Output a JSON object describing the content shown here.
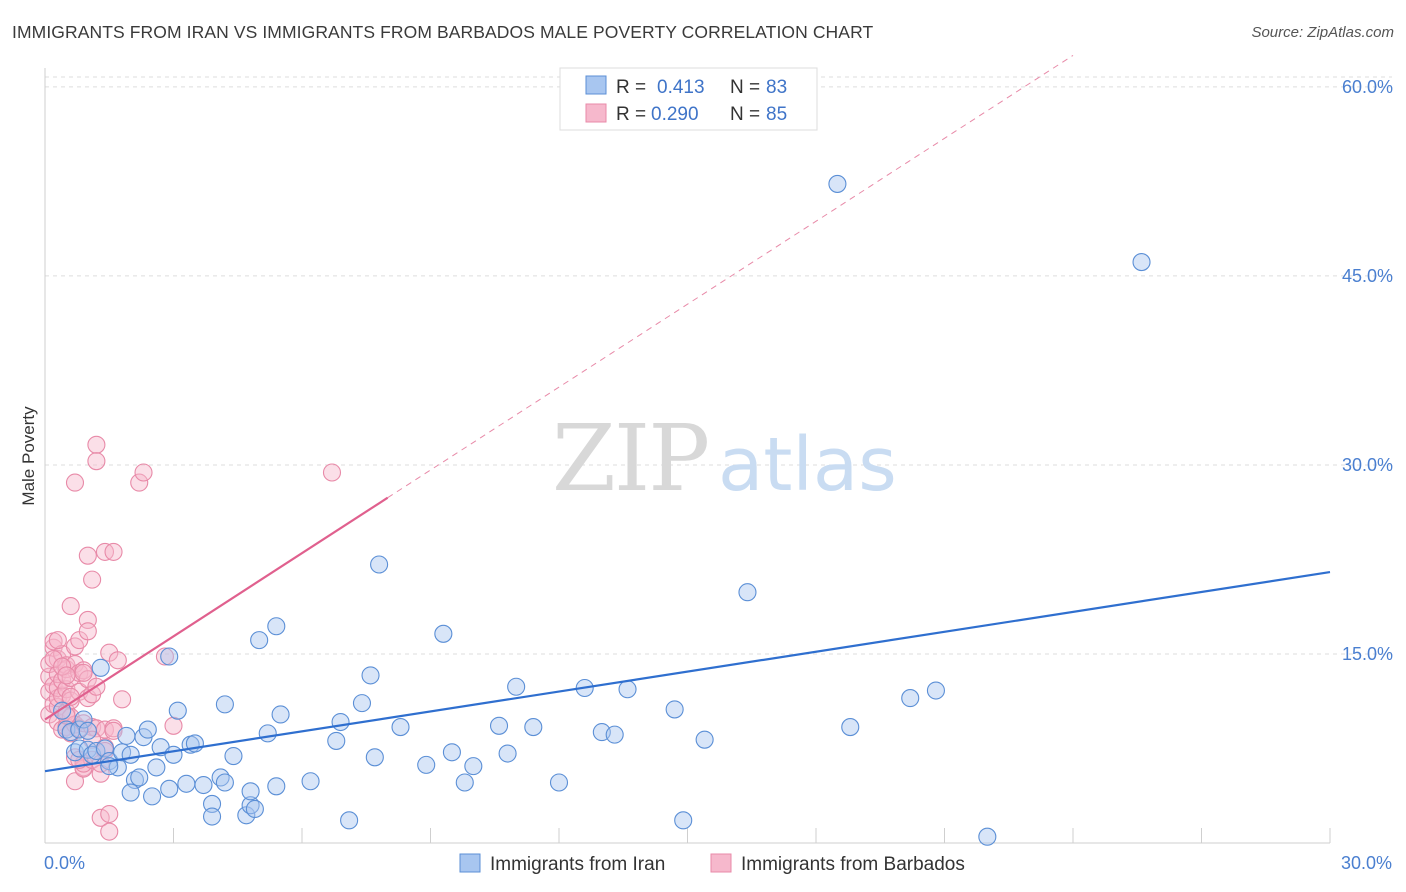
{
  "header": {
    "title": "IMMIGRANTS FROM IRAN VS IMMIGRANTS FROM BARBADOS MALE POVERTY CORRELATION CHART",
    "source": "Source: ZipAtlas.com"
  },
  "watermark": {
    "zip": "ZIP",
    "atlas": "atlas"
  },
  "colors": {
    "iran_fill": "#a8c6f0",
    "iran_stroke": "#5b8fd6",
    "iran_line": "#2f6fcf",
    "barbados_fill": "#f6b8cc",
    "barbados_stroke": "#e88aa8",
    "barbados_line": "#e0608e",
    "tick_label": "#4a7fd0",
    "grid": "#dddddd"
  },
  "legend_stats": [
    {
      "r_label": "R =",
      "r_value": "0.413",
      "n_label": "N =",
      "n_value": "83"
    },
    {
      "r_label": "R =",
      "r_value": "0.290",
      "n_label": "N =",
      "n_value": "85"
    }
  ],
  "chart_data": {
    "type": "scatter",
    "title": "IMMIGRANTS FROM IRAN VS IMMIGRANTS FROM BARBADOS MALE POVERTY CORRELATION CHART",
    "xlabel": "",
    "ylabel": "Male Poverty",
    "xlim": [
      0,
      30
    ],
    "ylim": [
      0,
      61.5
    ],
    "x_tick_labels": [
      "0.0%",
      "30.0%"
    ],
    "y_ticks": [
      15,
      30,
      45,
      60
    ],
    "y_tick_labels": [
      "15.0%",
      "30.0%",
      "45.0%",
      "60.0%"
    ],
    "grid": true,
    "legend_position": "bottom",
    "series": [
      {
        "name": "Immigrants from Iran",
        "trend": {
          "x0": 0,
          "y0": 5.7,
          "x1": 30,
          "y1": 21.5,
          "dashed": false
        },
        "points": [
          [
            0.5,
            9.0
          ],
          [
            0.6,
            8.8
          ],
          [
            0.7,
            7.2
          ],
          [
            0.8,
            7.5
          ],
          [
            0.8,
            9.0
          ],
          [
            0.9,
            9.8
          ],
          [
            1.0,
            7.4
          ],
          [
            1.0,
            8.9
          ],
          [
            1.1,
            7.0
          ],
          [
            1.2,
            7.3
          ],
          [
            1.4,
            7.5
          ],
          [
            1.5,
            6.5
          ],
          [
            1.7,
            6.0
          ],
          [
            1.8,
            7.2
          ],
          [
            1.9,
            8.5
          ],
          [
            2.0,
            7.0
          ],
          [
            2.1,
            5.0
          ],
          [
            2.2,
            5.2
          ],
          [
            2.3,
            8.4
          ],
          [
            2.4,
            9.0
          ],
          [
            2.5,
            3.7
          ],
          [
            2.6,
            6.0
          ],
          [
            2.7,
            7.6
          ],
          [
            2.9,
            4.3
          ],
          [
            3.0,
            7.0
          ],
          [
            3.1,
            10.5
          ],
          [
            3.3,
            4.7
          ],
          [
            3.4,
            7.8
          ],
          [
            3.5,
            7.9
          ],
          [
            3.7,
            4.6
          ],
          [
            3.9,
            3.1
          ],
          [
            3.9,
            2.1
          ],
          [
            4.1,
            5.2
          ],
          [
            4.2,
            4.8
          ],
          [
            4.2,
            11.0
          ],
          [
            4.4,
            6.9
          ],
          [
            4.7,
            2.2
          ],
          [
            4.8,
            3.0
          ],
          [
            4.8,
            4.1
          ],
          [
            4.9,
            2.7
          ],
          [
            5.0,
            16.1
          ],
          [
            5.2,
            8.7
          ],
          [
            5.4,
            4.5
          ],
          [
            5.4,
            17.2
          ],
          [
            5.5,
            10.2
          ],
          [
            6.2,
            4.9
          ],
          [
            6.8,
            8.1
          ],
          [
            6.9,
            9.6
          ],
          [
            7.1,
            1.8
          ],
          [
            7.4,
            11.1
          ],
          [
            7.6,
            13.3
          ],
          [
            7.7,
            6.8
          ],
          [
            7.8,
            22.1
          ],
          [
            8.3,
            9.2
          ],
          [
            8.9,
            6.2
          ],
          [
            9.3,
            16.6
          ],
          [
            9.5,
            7.2
          ],
          [
            9.8,
            4.8
          ],
          [
            10.0,
            6.1
          ],
          [
            10.6,
            9.3
          ],
          [
            10.8,
            7.1
          ],
          [
            11.0,
            12.4
          ],
          [
            11.4,
            9.2
          ],
          [
            12.0,
            4.8
          ],
          [
            12.6,
            12.3
          ],
          [
            13.0,
            8.8
          ],
          [
            13.3,
            8.6
          ],
          [
            13.6,
            12.2
          ],
          [
            14.7,
            10.6
          ],
          [
            14.9,
            1.8
          ],
          [
            15.4,
            8.2
          ],
          [
            16.4,
            19.9
          ],
          [
            18.5,
            52.3
          ],
          [
            18.8,
            9.2
          ],
          [
            20.2,
            11.5
          ],
          [
            20.8,
            12.1
          ],
          [
            22.0,
            0.5
          ],
          [
            25.6,
            46.1
          ],
          [
            1.3,
            13.9
          ],
          [
            2.9,
            14.8
          ],
          [
            0.4,
            10.5
          ],
          [
            1.5,
            6.1
          ],
          [
            2.0,
            4.0
          ]
        ]
      },
      {
        "name": "Immigrants from Barbados",
        "trend": {
          "x0": 0,
          "y0": 9.8,
          "x1": 8.0,
          "y1": 27.4,
          "dashed": false,
          "extension": {
            "x1": 24.0,
            "y1": 62.5,
            "dashed": true
          }
        },
        "points": [
          [
            0.1,
            10.2
          ],
          [
            0.1,
            12.0
          ],
          [
            0.1,
            13.2
          ],
          [
            0.1,
            14.2
          ],
          [
            0.2,
            11.0
          ],
          [
            0.2,
            12.5
          ],
          [
            0.2,
            15.5
          ],
          [
            0.2,
            16.0
          ],
          [
            0.3,
            9.6
          ],
          [
            0.3,
            10.8
          ],
          [
            0.3,
            11.5
          ],
          [
            0.3,
            12.3
          ],
          [
            0.3,
            13.4
          ],
          [
            0.3,
            14.6
          ],
          [
            0.4,
            9.0
          ],
          [
            0.4,
            11.7
          ],
          [
            0.4,
            12.9
          ],
          [
            0.4,
            15.0
          ],
          [
            0.5,
            9.2
          ],
          [
            0.5,
            10.4
          ],
          [
            0.5,
            12.2
          ],
          [
            0.5,
            13.8
          ],
          [
            0.5,
            14.1
          ],
          [
            0.6,
            8.7
          ],
          [
            0.6,
            10.0
          ],
          [
            0.6,
            11.3
          ],
          [
            0.6,
            13.1
          ],
          [
            0.6,
            18.8
          ],
          [
            0.7,
            9.4
          ],
          [
            0.7,
            14.2
          ],
          [
            0.7,
            15.6
          ],
          [
            0.7,
            28.6
          ],
          [
            0.7,
            4.9
          ],
          [
            0.7,
            6.8
          ],
          [
            0.8,
            9.1
          ],
          [
            0.8,
            12.0
          ],
          [
            0.8,
            13.5
          ],
          [
            0.8,
            16.1
          ],
          [
            0.9,
            6.0
          ],
          [
            0.9,
            5.9
          ],
          [
            0.9,
            6.3
          ],
          [
            0.9,
            9.5
          ],
          [
            0.9,
            13.7
          ],
          [
            1.0,
            11.5
          ],
          [
            1.0,
            13.0
          ],
          [
            1.0,
            17.7
          ],
          [
            1.0,
            22.8
          ],
          [
            1.0,
            16.8
          ],
          [
            1.1,
            6.6
          ],
          [
            1.1,
            9.2
          ],
          [
            1.1,
            11.8
          ],
          [
            1.1,
            20.9
          ],
          [
            1.2,
            9.1
          ],
          [
            1.2,
            12.4
          ],
          [
            1.2,
            31.6
          ],
          [
            1.2,
            30.3
          ],
          [
            1.3,
            5.5
          ],
          [
            1.3,
            2.0
          ],
          [
            1.4,
            7.6
          ],
          [
            1.4,
            7.3
          ],
          [
            1.4,
            9.0
          ],
          [
            1.4,
            23.1
          ],
          [
            1.5,
            15.1
          ],
          [
            1.5,
            2.3
          ],
          [
            1.5,
            0.9
          ],
          [
            1.6,
            23.1
          ],
          [
            1.6,
            9.1
          ],
          [
            1.6,
            8.9
          ],
          [
            1.7,
            14.5
          ],
          [
            1.8,
            11.4
          ],
          [
            2.2,
            28.6
          ],
          [
            2.3,
            29.4
          ],
          [
            2.8,
            14.8
          ],
          [
            3.0,
            9.3
          ],
          [
            6.7,
            29.4
          ],
          [
            0.2,
            14.6
          ],
          [
            0.4,
            14.0
          ],
          [
            0.5,
            13.3
          ],
          [
            0.6,
            11.6
          ],
          [
            0.8,
            6.6
          ],
          [
            0.9,
            13.5
          ],
          [
            1.1,
            8.2
          ],
          [
            0.3,
            16.1
          ],
          [
            0.5,
            10.1
          ],
          [
            1.3,
            6.3
          ]
        ]
      }
    ]
  }
}
